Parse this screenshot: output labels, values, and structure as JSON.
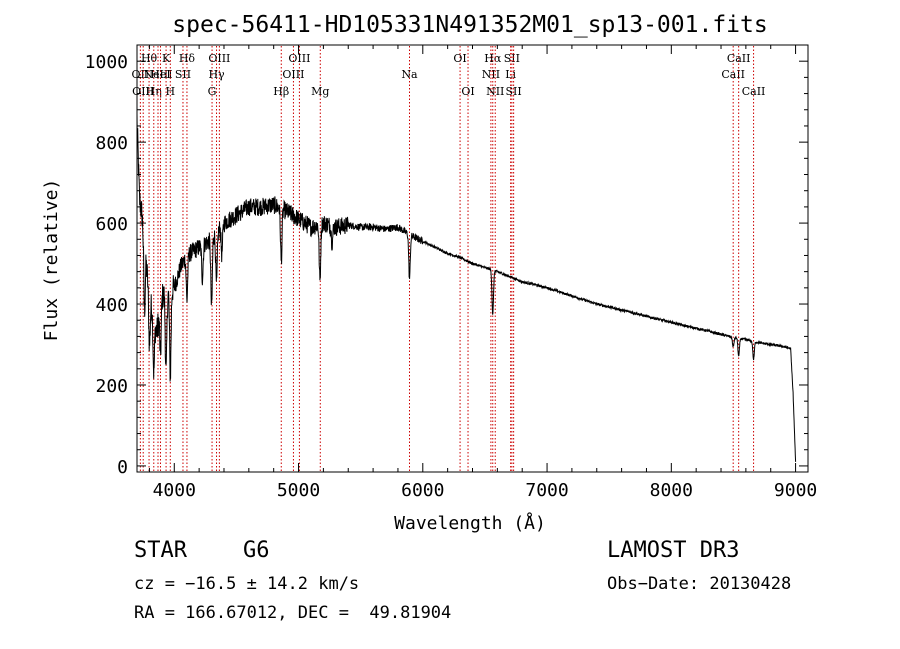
{
  "chart_data": {
    "type": "line",
    "title": "spec-56411-HD105331N491352M01_sp13-001.fits",
    "xlabel": "Wavelength (Å)",
    "ylabel": "Flux (relative)",
    "xlim": [
      3700,
      9100
    ],
    "ylim": [
      -15,
      1040
    ],
    "xticks": [
      4000,
      5000,
      6000,
      7000,
      8000,
      9000
    ],
    "yticks": [
      0,
      200,
      400,
      600,
      800,
      1000
    ],
    "line_color": "#000000",
    "marker_color": "#cc0000",
    "continuum": {
      "x": [
        3700,
        3720,
        3740,
        3760,
        3780,
        3800,
        3830,
        3860,
        3900,
        3950,
        4000,
        4050,
        4100,
        4200,
        4300,
        4400,
        4500,
        4600,
        4700,
        4800,
        4900,
        5000,
        5100,
        5200,
        5300,
        5400,
        5500,
        5600,
        5700,
        5800,
        5900,
        6000,
        6100,
        6200,
        6300,
        6400,
        6500,
        6600,
        6700,
        6800,
        6900,
        7000,
        7100,
        7200,
        7300,
        7400,
        7500,
        7600,
        7700,
        7800,
        7900,
        8000,
        8100,
        8200,
        8300,
        8400,
        8500,
        8600,
        8700,
        8800,
        8900,
        8960,
        8980,
        9000
      ],
      "y": [
        860,
        660,
        620,
        560,
        480,
        420,
        380,
        330,
        420,
        430,
        440,
        490,
        520,
        540,
        560,
        600,
        620,
        640,
        640,
        645,
        630,
        610,
        590,
        600,
        590,
        595,
        590,
        590,
        585,
        590,
        570,
        555,
        540,
        525,
        515,
        500,
        490,
        480,
        468,
        455,
        448,
        440,
        430,
        420,
        410,
        400,
        393,
        385,
        378,
        370,
        362,
        355,
        347,
        340,
        333,
        325,
        318,
        312,
        305,
        300,
        295,
        290,
        180,
        10
      ]
    },
    "absorption_features": [
      {
        "x": 3760,
        "depth": 170
      },
      {
        "x": 3800,
        "depth": 120
      },
      {
        "x": 3835,
        "depth": 140
      },
      {
        "x": 3889,
        "depth": 120
      },
      {
        "x": 3934,
        "depth": 200
      },
      {
        "x": 3968,
        "depth": 210
      },
      {
        "x": 4102,
        "depth": 110
      },
      {
        "x": 4226,
        "depth": 80
      },
      {
        "x": 4300,
        "depth": 170
      },
      {
        "x": 4340,
        "depth": 130
      },
      {
        "x": 4383,
        "depth": 70
      },
      {
        "x": 4861,
        "depth": 130
      },
      {
        "x": 5172,
        "depth": 140
      },
      {
        "x": 5270,
        "depth": 40
      },
      {
        "x": 5893,
        "depth": 110
      },
      {
        "x": 6563,
        "depth": 110
      },
      {
        "x": 8498,
        "depth": 25
      },
      {
        "x": 8542,
        "depth": 45
      },
      {
        "x": 8662,
        "depth": 45
      }
    ],
    "line_markers": [
      {
        "x": 3727,
        "label": "OII",
        "row": 2
      },
      {
        "x": 3750,
        "label": "OIII",
        "row": 3
      },
      {
        "x": 3797,
        "label": "Hθ",
        "row": 1
      },
      {
        "x": 3835,
        "label": "Hη",
        "row": 3
      },
      {
        "x": 3869,
        "label": "NeIII",
        "row": 2
      },
      {
        "x": 3889,
        "label": "HeI",
        "row": 2
      },
      {
        "x": 3934,
        "label": "K",
        "row": 1
      },
      {
        "x": 3968,
        "label": "H",
        "row": 3
      },
      {
        "x": 4070,
        "label": "SII",
        "row": 2
      },
      {
        "x": 4102,
        "label": "Hδ",
        "row": 1
      },
      {
        "x": 4304,
        "label": "G",
        "row": 3
      },
      {
        "x": 4340,
        "label": "Hγ",
        "row": 2
      },
      {
        "x": 4363,
        "label": "OIII",
        "row": 1
      },
      {
        "x": 4861,
        "label": "Hβ",
        "row": 3
      },
      {
        "x": 4959,
        "label": "OIII",
        "row": 2
      },
      {
        "x": 5007,
        "label": "OIII",
        "row": 1
      },
      {
        "x": 5175,
        "label": "Mg",
        "row": 3
      },
      {
        "x": 5893,
        "label": "Na",
        "row": 2
      },
      {
        "x": 6300,
        "label": "OI",
        "row": 1
      },
      {
        "x": 6364,
        "label": "OI",
        "row": 3
      },
      {
        "x": 6548,
        "label": "NII",
        "row": 2
      },
      {
        "x": 6563,
        "label": "Hα",
        "row": 1
      },
      {
        "x": 6583,
        "label": "NII",
        "row": 3
      },
      {
        "x": 6707,
        "label": "Li",
        "row": 2
      },
      {
        "x": 6717,
        "label": "SII",
        "row": 1
      },
      {
        "x": 6731,
        "label": "SII",
        "row": 3
      },
      {
        "x": 8498,
        "label": "CaII",
        "row": 2
      },
      {
        "x": 8542,
        "label": "CaII",
        "row": 1
      },
      {
        "x": 8662,
        "label": "CaII",
        "row": 3
      }
    ]
  },
  "info": {
    "object_class": "STAR",
    "subclass": "G6",
    "survey": "LAMOST DR3",
    "redshift": "cz = −16.5 ± 14.2 km/s",
    "obs_date": "Obs−Date: 20130428",
    "coords": "RA = 166.67012, DEC =  49.81904"
  }
}
